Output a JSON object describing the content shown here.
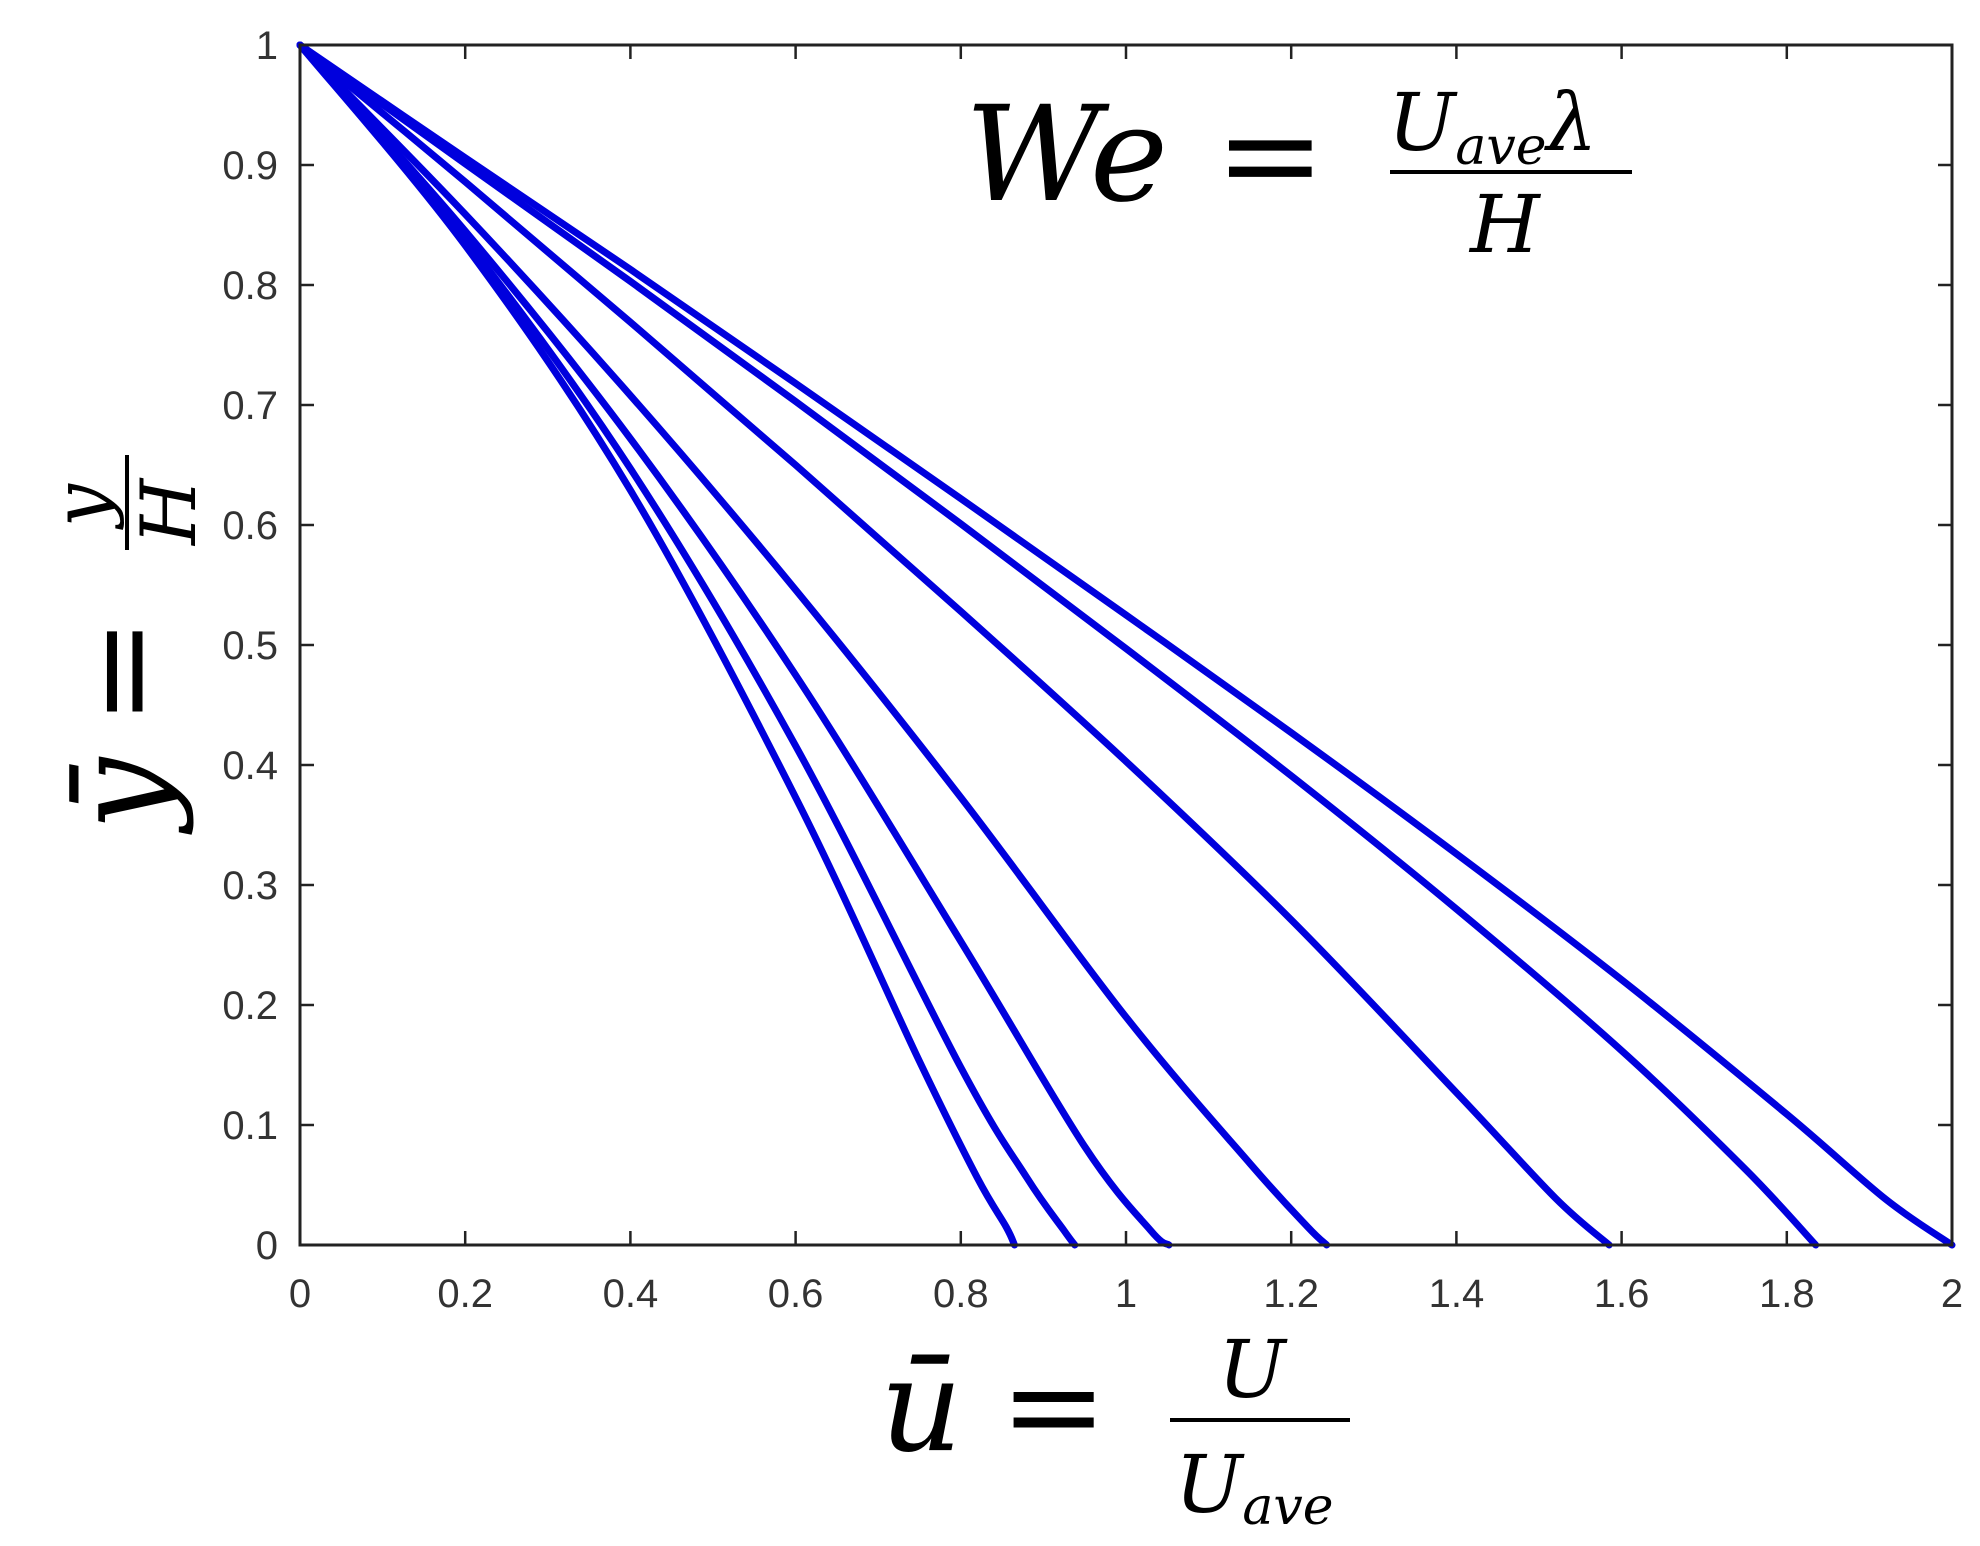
{
  "chart_data": {
    "type": "line",
    "title": "",
    "annotation": {
      "lhs": "We",
      "equals": "=",
      "numerator_main": "U",
      "numerator_sub": "ave",
      "numerator_tail": "λ",
      "denominator": "H"
    },
    "xlabel": {
      "lhs": "ū",
      "equals": "=",
      "numerator": "U",
      "denominator_main": "U",
      "denominator_sub": "ave"
    },
    "ylabel": {
      "lhs": "ȳ",
      "equals": "=",
      "numerator": "y",
      "denominator": "H"
    },
    "xlim": [
      0,
      2
    ],
    "ylim": [
      0,
      1
    ],
    "xticks": [
      "0",
      "0.2",
      "0.4",
      "0.6",
      "0.8",
      "1",
      "1.2",
      "1.4",
      "1.6",
      "1.8",
      "2"
    ],
    "yticks": [
      "0",
      "0.1",
      "0.2",
      "0.3",
      "0.4",
      "0.5",
      "0.6",
      "0.7",
      "0.8",
      "0.9",
      "1"
    ],
    "grid": false,
    "legend": "none",
    "line_color": "#0000dd",
    "series": [
      {
        "points": [
          [
            0,
            1
          ],
          [
            0.2,
            0.833
          ],
          [
            0.4,
            0.629
          ],
          [
            0.6,
            0.373
          ],
          [
            0.75,
            0.153
          ],
          [
            0.82,
            0.056
          ],
          [
            0.855,
            0.015
          ],
          [
            0.865,
            0
          ]
        ]
      },
      {
        "points": [
          [
            0,
            1
          ],
          [
            0.2,
            0.838
          ],
          [
            0.4,
            0.647
          ],
          [
            0.6,
            0.416
          ],
          [
            0.8,
            0.148
          ],
          [
            0.88,
            0.056
          ],
          [
            0.925,
            0.012
          ],
          [
            0.938,
            0
          ]
        ]
      },
      {
        "points": [
          [
            0,
            1
          ],
          [
            0.2,
            0.845
          ],
          [
            0.4,
            0.672
          ],
          [
            0.6,
            0.475
          ],
          [
            0.8,
            0.253
          ],
          [
            0.95,
            0.082
          ],
          [
            1.03,
            0.012
          ],
          [
            1.052,
            0
          ]
        ]
      },
      {
        "points": [
          [
            0,
            1
          ],
          [
            0.2,
            0.859
          ],
          [
            0.4,
            0.708
          ],
          [
            0.6,
            0.546
          ],
          [
            0.8,
            0.373
          ],
          [
            1.0,
            0.19
          ],
          [
            1.15,
            0.068
          ],
          [
            1.22,
            0.015
          ],
          [
            1.243,
            0
          ]
        ]
      },
      {
        "points": [
          [
            0,
            1
          ],
          [
            0.2,
            0.886
          ],
          [
            0.4,
            0.769
          ],
          [
            0.6,
            0.65
          ],
          [
            0.8,
            0.528
          ],
          [
            1.0,
            0.403
          ],
          [
            1.2,
            0.271
          ],
          [
            1.4,
            0.127
          ],
          [
            1.52,
            0.039
          ],
          [
            1.585,
            0
          ]
        ]
      },
      {
        "points": [
          [
            0,
            1
          ],
          [
            0.2,
            0.901
          ],
          [
            0.4,
            0.803
          ],
          [
            0.6,
            0.703
          ],
          [
            0.8,
            0.601
          ],
          [
            1.0,
            0.497
          ],
          [
            1.2,
            0.391
          ],
          [
            1.4,
            0.28
          ],
          [
            1.6,
            0.162
          ],
          [
            1.75,
            0.063
          ],
          [
            1.835,
            0
          ]
        ]
      },
      {
        "points": [
          [
            0,
            1
          ],
          [
            0.2,
            0.906
          ],
          [
            0.4,
            0.813
          ],
          [
            0.6,
            0.718
          ],
          [
            0.8,
            0.622
          ],
          [
            1.0,
            0.525
          ],
          [
            1.2,
            0.427
          ],
          [
            1.4,
            0.326
          ],
          [
            1.6,
            0.221
          ],
          [
            1.8,
            0.109
          ],
          [
            1.92,
            0.038
          ],
          [
            2.0,
            0
          ]
        ]
      }
    ]
  }
}
